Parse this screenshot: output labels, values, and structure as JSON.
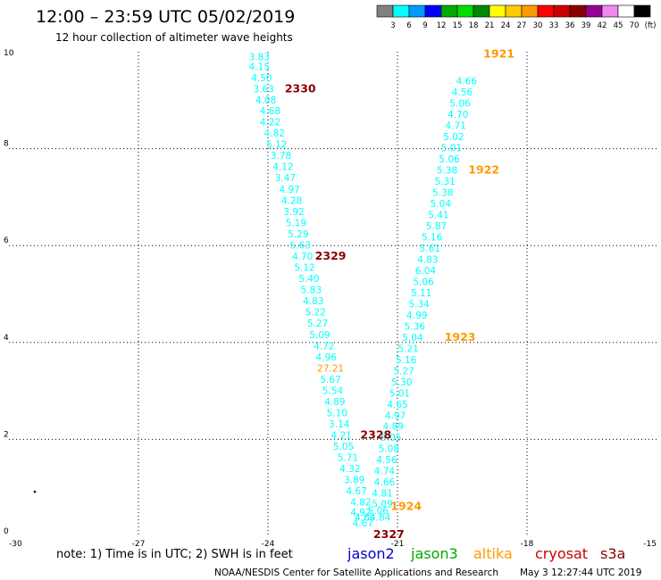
{
  "header": {
    "title": "12:00 – 23:59 UTC 05/02/2019",
    "subtitle": "12 hour collection of altimeter wave heights"
  },
  "legend": {
    "ticks": [
      "3",
      "6",
      "9",
      "12",
      "15",
      "18",
      "21",
      "24",
      "27",
      "30",
      "33",
      "36",
      "39",
      "42",
      "45",
      "70",
      "(ft)"
    ],
    "colors": [
      "#808080",
      "#00ffff",
      "#0099ff",
      "#0000ff",
      "#00aa00",
      "#00dd00",
      "#008800",
      "#ffff00",
      "#ffcc00",
      "#ff9900",
      "#ff0000",
      "#cc0000",
      "#880000",
      "#990099",
      "#ee88ee",
      "#ffffff",
      "#000000"
    ]
  },
  "note": {
    "text": "note:  1) Time is in UTC; 2) SWH is in feet"
  },
  "satellites": [
    {
      "name": "jason2",
      "color": "#0000cc"
    },
    {
      "name": "jason3",
      "color": "#00aa00"
    },
    {
      "name": "altika",
      "color": "#ff9900"
    },
    {
      "name": "cryosat",
      "color": "#cc0000"
    },
    {
      "name": "s3a",
      "color": "#880000"
    }
  ],
  "footer": {
    "credit": "NOAA/NESDIS Center for Satellite Applications and Research",
    "timestamp": "May  3 12:27:44 UTC 2019"
  },
  "chart_data": {
    "type": "scatter",
    "xlim": [
      -30,
      -15
    ],
    "ylim": [
      0,
      10
    ],
    "xticks": [
      "-30",
      "-27",
      "-24",
      "-21",
      "-18",
      "-15"
    ],
    "yticks": [
      "0",
      "2",
      "4",
      "6",
      "8",
      "10"
    ],
    "grid": true,
    "colors": {
      "s3a": "#00ffff",
      "altika": "#ff9900",
      "cryosat": "#880000"
    },
    "series": [
      {
        "name": "s3a",
        "color": "#00ffff",
        "points": [
          {
            "x": -24.2,
            "y": 9.9,
            "v": "3.83"
          },
          {
            "x": -24.2,
            "y": 9.7,
            "v": "4.15"
          },
          {
            "x": -24.15,
            "y": 9.47,
            "v": "4.50"
          },
          {
            "x": -24.1,
            "y": 9.24,
            "v": "3.63"
          },
          {
            "x": -24.05,
            "y": 9.01,
            "v": "4.08"
          },
          {
            "x": -23.95,
            "y": 8.78,
            "v": "4.68"
          },
          {
            "x": -23.95,
            "y": 8.55,
            "v": "4.22"
          },
          {
            "x": -23.85,
            "y": 8.32,
            "v": "4.82"
          },
          {
            "x": -23.8,
            "y": 8.09,
            "v": "5.12"
          },
          {
            "x": -23.7,
            "y": 7.86,
            "v": "3.78"
          },
          {
            "x": -23.65,
            "y": 7.63,
            "v": "4.12"
          },
          {
            "x": -23.6,
            "y": 7.4,
            "v": "3.47"
          },
          {
            "x": -23.5,
            "y": 7.16,
            "v": "4.97"
          },
          {
            "x": -23.45,
            "y": 6.93,
            "v": "4.28"
          },
          {
            "x": -23.4,
            "y": 6.7,
            "v": "3.92"
          },
          {
            "x": -23.35,
            "y": 6.47,
            "v": "5.19"
          },
          {
            "x": -23.3,
            "y": 6.24,
            "v": "5.29"
          },
          {
            "x": -23.25,
            "y": 6.01,
            "v": "5.63"
          },
          {
            "x": -23.2,
            "y": 5.78,
            "v": "4.70"
          },
          {
            "x": -23.15,
            "y": 5.55,
            "v": "5.12"
          },
          {
            "x": -23.05,
            "y": 5.32,
            "v": "5.40"
          },
          {
            "x": -23.0,
            "y": 5.09,
            "v": "5.83"
          },
          {
            "x": -22.95,
            "y": 4.86,
            "v": "4.83"
          },
          {
            "x": -22.9,
            "y": 4.63,
            "v": "5.22"
          },
          {
            "x": -22.85,
            "y": 4.4,
            "v": "5.27"
          },
          {
            "x": -22.8,
            "y": 4.16,
            "v": "5.09"
          },
          {
            "x": -22.7,
            "y": 3.93,
            "v": "4.72"
          },
          {
            "x": -22.65,
            "y": 3.7,
            "v": "4.96"
          },
          {
            "x": -22.55,
            "y": 3.24,
            "v": "5.67"
          },
          {
            "x": -22.5,
            "y": 3.01,
            "v": "5.54"
          },
          {
            "x": -22.45,
            "y": 2.78,
            "v": "4.89"
          },
          {
            "x": -22.4,
            "y": 2.55,
            "v": "5.10"
          },
          {
            "x": -22.35,
            "y": 2.32,
            "v": "3.14"
          },
          {
            "x": -22.3,
            "y": 2.09,
            "v": "4.21"
          },
          {
            "x": -22.25,
            "y": 1.86,
            "v": "5.05"
          },
          {
            "x": -22.15,
            "y": 1.63,
            "v": "5.71"
          },
          {
            "x": -22.1,
            "y": 1.4,
            "v": "4.32"
          },
          {
            "x": -22.0,
            "y": 1.17,
            "v": "3.89"
          },
          {
            "x": -21.95,
            "y": 0.94,
            "v": "4.67"
          },
          {
            "x": -21.85,
            "y": 0.71,
            "v": "4.82"
          },
          {
            "x": -21.85,
            "y": 0.5,
            "v": "4.92"
          },
          {
            "x": -21.75,
            "y": 0.4,
            "v": "4.64"
          },
          {
            "x": -21.8,
            "y": 0.28,
            "v": "4.67"
          },
          {
            "x": -21.4,
            "y": 0.4,
            "v": "4.84"
          },
          {
            "x": -21.45,
            "y": 0.53,
            "v": "5.06"
          },
          {
            "x": -21.35,
            "y": 0.67,
            "v": "5.09"
          },
          {
            "x": -21.35,
            "y": 0.89,
            "v": "4.81"
          },
          {
            "x": -21.3,
            "y": 1.12,
            "v": "4.66"
          },
          {
            "x": -21.3,
            "y": 1.35,
            "v": "4.74"
          },
          {
            "x": -21.25,
            "y": 1.58,
            "v": "4.56"
          },
          {
            "x": -21.2,
            "y": 1.81,
            "v": "5.08"
          },
          {
            "x": -21.15,
            "y": 2.04,
            "v": "5.05"
          },
          {
            "x": -21.1,
            "y": 2.27,
            "v": "4.89"
          },
          {
            "x": -21.05,
            "y": 2.5,
            "v": "4.97"
          },
          {
            "x": -21.0,
            "y": 2.73,
            "v": "4.65"
          },
          {
            "x": -20.95,
            "y": 2.96,
            "v": "5.01"
          },
          {
            "x": -20.9,
            "y": 3.19,
            "v": "5.30"
          },
          {
            "x": -20.85,
            "y": 3.42,
            "v": "5.27"
          },
          {
            "x": -20.8,
            "y": 3.65,
            "v": "5.16"
          },
          {
            "x": -20.75,
            "y": 3.88,
            "v": "5.21"
          },
          {
            "x": -20.65,
            "y": 4.11,
            "v": "5.04"
          },
          {
            "x": -20.6,
            "y": 4.34,
            "v": "5.36"
          },
          {
            "x": -20.55,
            "y": 4.57,
            "v": "4.99"
          },
          {
            "x": -20.5,
            "y": 4.8,
            "v": "5.34"
          },
          {
            "x": -20.45,
            "y": 5.03,
            "v": "5.11"
          },
          {
            "x": -20.4,
            "y": 5.26,
            "v": "5.06"
          },
          {
            "x": -20.35,
            "y": 5.49,
            "v": "6.04"
          },
          {
            "x": -20.3,
            "y": 5.72,
            "v": "4.83"
          },
          {
            "x": -20.25,
            "y": 5.95,
            "v": "5.61"
          },
          {
            "x": -20.2,
            "y": 6.18,
            "v": "5.16"
          },
          {
            "x": -20.1,
            "y": 6.41,
            "v": "5.87"
          },
          {
            "x": -20.05,
            "y": 6.64,
            "v": "5.41"
          },
          {
            "x": -20.0,
            "y": 6.87,
            "v": "5.04"
          },
          {
            "x": -19.95,
            "y": 7.1,
            "v": "5.38"
          },
          {
            "x": -19.9,
            "y": 7.33,
            "v": "5.31"
          },
          {
            "x": -19.85,
            "y": 7.56,
            "v": "5.38"
          },
          {
            "x": -19.8,
            "y": 7.79,
            "v": "5.06"
          },
          {
            "x": -19.75,
            "y": 8.02,
            "v": "5.01"
          },
          {
            "x": -19.7,
            "y": 8.25,
            "v": "5.02"
          },
          {
            "x": -19.65,
            "y": 8.48,
            "v": "4.71"
          },
          {
            "x": -19.6,
            "y": 8.71,
            "v": "4.70"
          },
          {
            "x": -19.55,
            "y": 8.94,
            "v": "5.06"
          },
          {
            "x": -19.5,
            "y": 9.17,
            "v": "4.56"
          },
          {
            "x": -19.4,
            "y": 9.4,
            "v": "4.66"
          }
        ]
      },
      {
        "name": "altika",
        "color": "#ff9900",
        "points": [
          {
            "x": -22.55,
            "y": 3.47,
            "v": "27.21"
          }
        ]
      }
    ],
    "pass_labels": [
      {
        "x": -23.25,
        "y": 9.24,
        "text": "2330",
        "color": "#880000"
      },
      {
        "x": -22.55,
        "y": 5.78,
        "text": "2329",
        "color": "#880000"
      },
      {
        "x": -21.5,
        "y": 2.09,
        "text": "2328",
        "color": "#880000"
      },
      {
        "x": -21.2,
        "y": 0.04,
        "text": "2327",
        "color": "#880000"
      },
      {
        "x": -18.65,
        "y": 9.95,
        "text": "1921",
        "color": "#ff9900"
      },
      {
        "x": -19.0,
        "y": 7.56,
        "text": "1922",
        "color": "#ff9900"
      },
      {
        "x": -19.55,
        "y": 4.11,
        "text": "1923",
        "color": "#ff9900"
      },
      {
        "x": -20.8,
        "y": 0.62,
        "text": "1924",
        "color": "#ff9900"
      }
    ]
  }
}
